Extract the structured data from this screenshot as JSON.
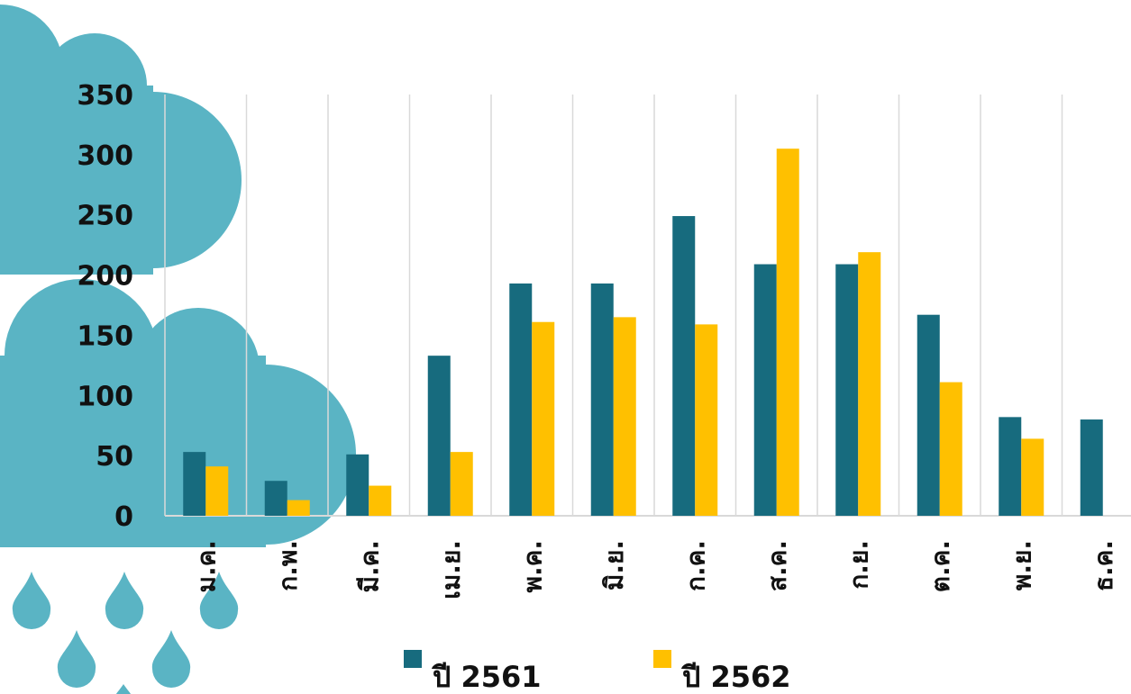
{
  "chart_data": {
    "type": "bar",
    "categories": [
      "ม.ค.",
      "ก.พ.",
      "มี.ค.",
      "เม.ย.",
      "พ.ค.",
      "มิ.ย.",
      "ก.ค.",
      "ส.ค.",
      "ก.ย.",
      "ต.ค.",
      "พ.ย.",
      "ธ.ค."
    ],
    "series": [
      {
        "name": "ปี 2561",
        "color": "#176b7e",
        "values": [
          53,
          29,
          51,
          133,
          193,
          193,
          249,
          209,
          209,
          167,
          82,
          80
        ]
      },
      {
        "name": "ปี 2562",
        "color": "#ffc000",
        "values": [
          41,
          13,
          25,
          53,
          161,
          165,
          159,
          305,
          219,
          111,
          64,
          null
        ]
      }
    ],
    "ylim": [
      0,
      350
    ],
    "yticks": [
      0,
      50,
      100,
      150,
      200,
      250,
      300,
      350
    ],
    "grid": true,
    "legend": "bottom"
  }
}
